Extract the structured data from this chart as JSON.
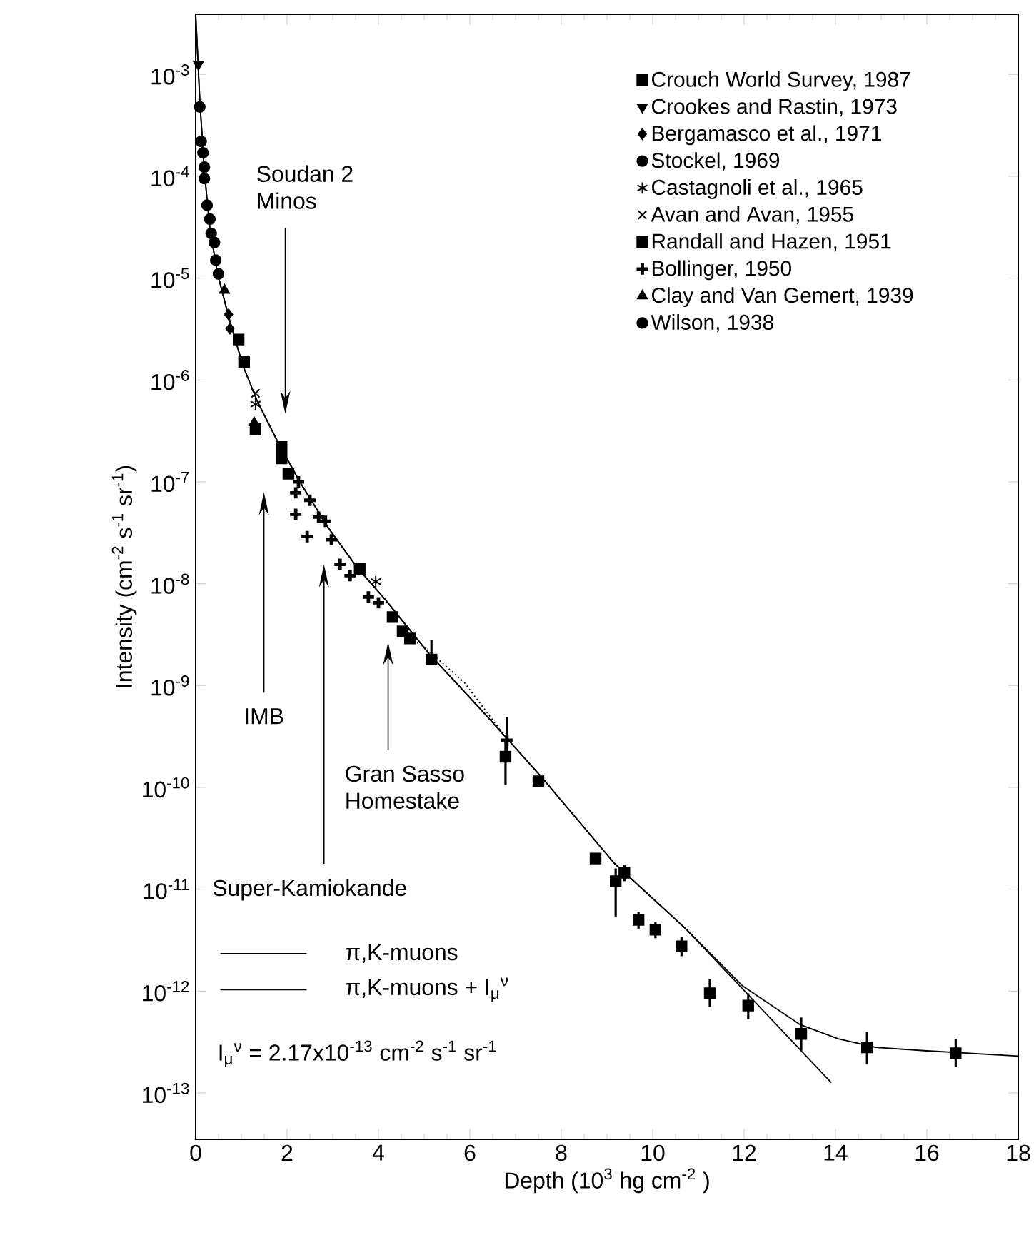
{
  "chart_data": {
    "type": "scatter",
    "xlabel": "Depth (10$^{3}$ hg cm$^{-2}$ )",
    "ylabel": "Intensity  (cm$^{-2}$ s$^{-1}$ sr$^{-1}$)",
    "log": "y",
    "legend": "top right",
    "xlim": [
      0,
      18
    ],
    "ylim": [
      3.5e-14,
      0.0039
    ],
    "xticks": [
      0,
      2,
      4,
      6,
      8,
      10,
      12,
      14,
      16,
      18
    ],
    "yticks": [
      {
        "value": 0.001,
        "label": "10$^{-3}$"
      },
      {
        "value": 0.0001,
        "label": "10$^{-4}$"
      },
      {
        "value": 1e-05,
        "label": "10$^{-5}$"
      },
      {
        "value": 1e-06,
        "label": "10$^{-6}$"
      },
      {
        "value": 1e-07,
        "label": "10$^{-7}$"
      },
      {
        "value": 1e-08,
        "label": "10$^{-8}$"
      },
      {
        "value": 1e-09,
        "label": "10$^{-9}$"
      },
      {
        "value": 1e-10,
        "label": "10$^{-10}$"
      },
      {
        "value": 1e-11,
        "label": "10$^{-11}$"
      },
      {
        "value": 1e-12,
        "label": "10$^{-12}$"
      },
      {
        "value": 1e-13,
        "label": "10$^{-13}$"
      }
    ],
    "series": [
      {
        "name": "Crouch World Survey, 1987",
        "color": "#000000",
        "marker": "square",
        "x": [
          4.31,
          4.53,
          4.69,
          5.16,
          6.78,
          7.5,
          8.75,
          9.19,
          9.38,
          9.69,
          10.06,
          10.63,
          11.25,
          12.09,
          13.25,
          14.69,
          16.63
        ],
        "values": [
          4.7e-09,
          3.4e-09,
          2.9e-09,
          1.8e-09,
          2e-10,
          1.15e-10,
          2e-11,
          1.2e-11,
          1.45e-11,
          5e-12,
          4e-12,
          2.75e-12,
          9.5e-13,
          7.2e-13,
          3.8e-13,
          2.8e-13,
          2.45e-13
        ],
        "errors": [
          null,
          null,
          null,
          [
            1.6e-09,
            2.8e-09
          ],
          [
            1.05e-10,
            3e-10
          ],
          [
            1e-10,
            1.3e-10
          ],
          [
            1.8e-11,
            2.2e-11
          ],
          [
            5.4e-12,
            1.6e-11
          ],
          [
            1.2e-11,
            1.75e-11
          ],
          [
            4.1e-12,
            6e-12
          ],
          [
            3.3e-12,
            4.8e-12
          ],
          [
            2.2e-12,
            3.4e-12
          ],
          [
            7e-13,
            1.3e-12
          ],
          [
            5.3e-13,
            9.5e-13
          ],
          [
            2.6e-13,
            5.5e-13
          ],
          [
            1.9e-13,
            4e-13
          ],
          [
            1.8e-13,
            3.4e-13
          ]
        ]
      },
      {
        "name": "Crookes and Rastin, 1973",
        "color": "#000000",
        "marker": "triangle-down",
        "x": [
          0.06
        ],
        "values": [
          0.00126
        ]
      },
      {
        "name": "Bergamasco et al., 1971",
        "color": "#000000",
        "marker": "diamond",
        "x": [
          0.72,
          0.75
        ],
        "values": [
          4.4e-06,
          3.2e-06
        ]
      },
      {
        "name": "Stockel, 1969",
        "color": "#000000",
        "marker": "circle",
        "x": [
          0.19,
          0.25,
          0.31,
          0.34,
          0.41,
          0.44,
          0.5
        ],
        "values": [
          9.5e-05,
          5.2e-05,
          3.8e-05,
          2.75e-05,
          2.24e-05,
          1.5e-05,
          1.1e-05
        ]
      },
      {
        "name": "Castagnoli et al., 1965",
        "color": "#000000",
        "x": [
          1.31,
          3.94
        ],
        "values": [
          5.8e-07,
          1.05e-08
        ]
      },
      {
        "name": "Avan and Avan, 1955",
        "color": "#000000",
        "marker": "cross",
        "x": [
          1.31
        ],
        "values": [
          7.4e-07
        ]
      },
      {
        "name": "Randall and Hazen, 1951",
        "color": "#000000",
        "marker": "square",
        "x": [
          0.94,
          1.06,
          1.31,
          1.88,
          1.88,
          2.03,
          3.59
        ],
        "values": [
          2.5e-06,
          1.5e-06,
          3.3e-07,
          2.2e-07,
          1.7e-07,
          1.2e-07,
          1.4e-08
        ]
      },
      {
        "name": "Bollinger, 1950",
        "color": "#000000",
        "marker": "plus",
        "x": [
          2.25,
          2.19,
          2.5,
          2.19,
          2.44,
          2.69,
          2.84,
          2.97,
          3.16,
          3.38,
          3.78,
          4.0,
          6.81
        ],
        "values": [
          1e-07,
          7.8e-08,
          6.6e-08,
          4.8e-08,
          2.9e-08,
          4.5e-08,
          4.1e-08,
          2.7e-08,
          1.55e-08,
          1.2e-08,
          7.4e-09,
          6.5e-09,
          2.9e-10
        ],
        "errors": [
          null,
          null,
          null,
          null,
          null,
          null,
          null,
          null,
          null,
          null,
          null,
          null,
          [
            1.9e-10,
            4.9e-10
          ]
        ]
      },
      {
        "name": "Clay and Van Gemert, 1939",
        "color": "#000000",
        "marker": "triangle",
        "x": [
          0.63,
          1.28
        ],
        "values": [
          7.6e-06,
          3.8e-07
        ]
      },
      {
        "name": "Wilson, 1938",
        "color": "#000000",
        "marker": "circle",
        "x": [
          0.09,
          0.12,
          0.16,
          0.19
        ],
        "values": [
          0.00048,
          0.00022,
          0.00017,
          0.000123
        ]
      },
      {
        "name": "π,K-muons",
        "type": "line",
        "color": "#000000",
        "marker": "none",
        "line_style": "solid",
        "x": [
          0.0,
          0.09,
          0.19,
          0.31,
          0.47,
          0.72,
          1.03,
          1.34,
          1.81,
          2.28,
          2.91,
          3.53,
          4.16,
          5.09,
          6.34,
          7.59,
          9.16,
          10.72,
          13.91
        ],
        "values": [
          0.0039,
          0.00056,
          0.000112,
          3.1e-05,
          1.15e-05,
          4.2e-06,
          1.4e-06,
          6.3e-07,
          2.4e-07,
          1e-07,
          3.5e-08,
          1.45e-08,
          6.9e-09,
          2.1e-09,
          5.2e-10,
          1.23e-10,
          1.8e-11,
          4.1e-12,
          1.26e-13
        ]
      },
      {
        "name": "π,K-muons + I$_{μ}$$^{ν}$",
        "type": "line",
        "color": "#000000",
        "marker": "none",
        "line_style": "solid",
        "x": [
          0.0,
          0.09,
          0.19,
          0.31,
          0.47,
          0.72,
          1.03,
          1.34,
          1.81,
          2.28,
          2.91,
          3.53,
          4.16,
          5.09,
          6.34,
          7.59,
          9.16,
          10.72,
          11.97,
          13.22,
          14.06,
          14.88,
          15.94,
          18.0
        ],
        "values": [
          0.0039,
          0.00056,
          0.000112,
          3.1e-05,
          1.15e-05,
          4.2e-06,
          1.4e-06,
          6.3e-07,
          2.4e-07,
          1e-07,
          3.5e-08,
          1.45e-08,
          6.9e-09,
          2.1e-09,
          5.2e-10,
          1.23e-10,
          1.8e-11,
          4.1e-12,
          1.12e-12,
          4.7e-13,
          3.4e-13,
          2.8e-13,
          2.6e-13,
          2.3e-13
        ]
      },
      {
        "type": "line",
        "color": "#000000",
        "marker": "none",
        "line_style": "dotted",
        "x": [
          4.69,
          5.0,
          5.88,
          6.72
        ],
        "values": [
          2.9e-09,
          2.4e-09,
          1.07e-09,
          3.4e-10
        ]
      }
    ],
    "annotations": [
      "Soudan 2",
      "Minos",
      "IMB",
      "Super-Kamiokande",
      "Gran Sasso",
      "Homestake",
      "I$_{μ}$$^{ν}$  = 2.17x10$^{-13}$ cm$^{-2}$ s$^{-1}$ sr$^{-1}$"
    ]
  }
}
